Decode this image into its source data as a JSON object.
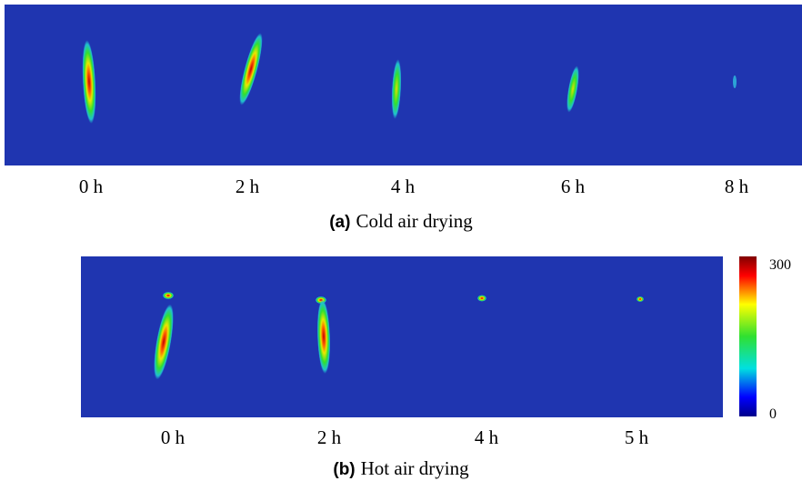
{
  "panels": [
    {
      "label": "(a)",
      "caption": "Cold air drying",
      "times": [
        "0 h",
        "2 h",
        "4 h",
        "6 h",
        "8 h"
      ]
    },
    {
      "label": "(b)",
      "caption": "Hot air drying",
      "times": [
        "0 h",
        "2 h",
        "4 h",
        "5 h"
      ]
    }
  ],
  "colorbar": {
    "max": 300,
    "min": 0
  }
}
